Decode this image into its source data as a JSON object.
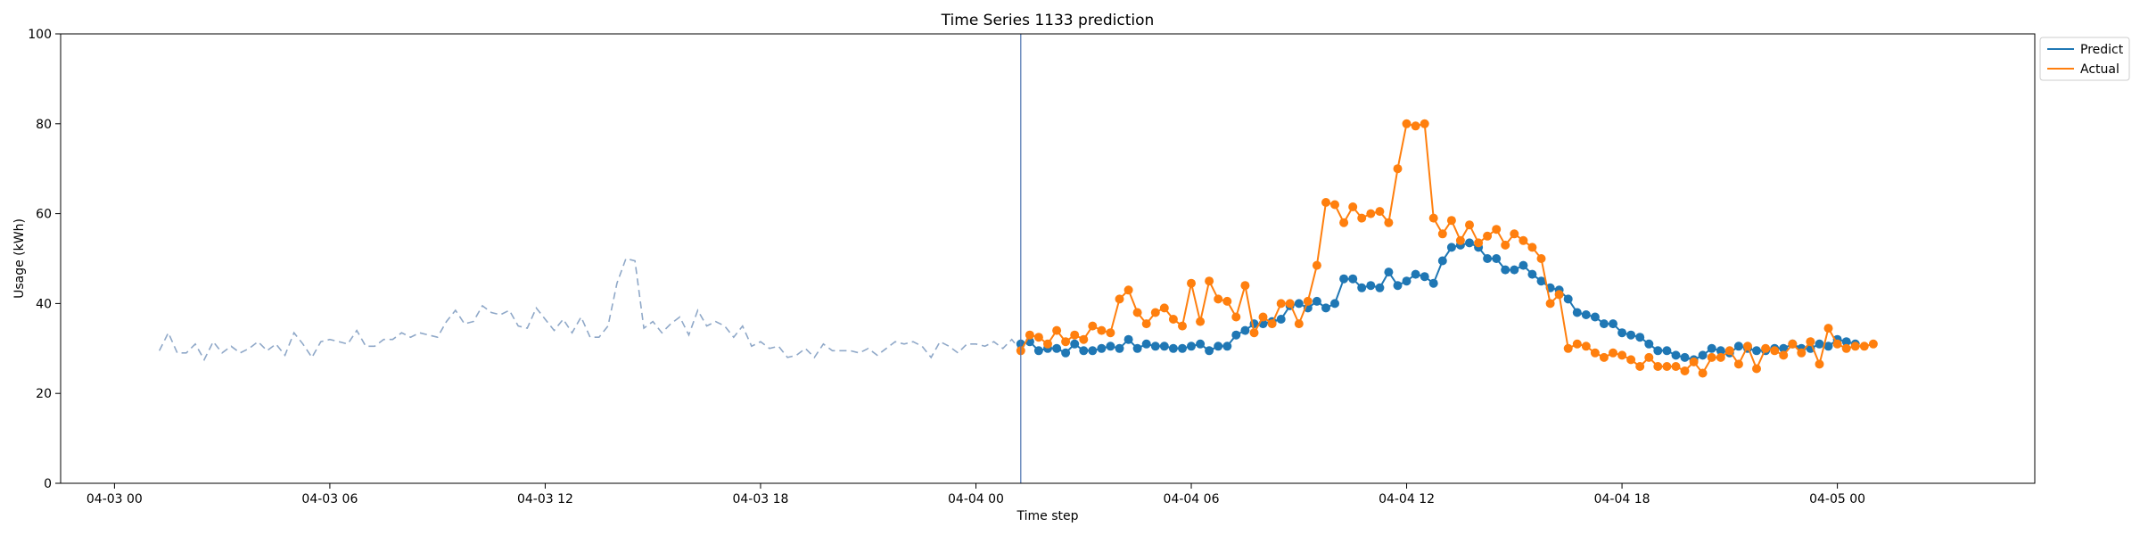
{
  "chart_data": {
    "type": "line",
    "title": "Time Series 1133 prediction",
    "xlabel": "Time step",
    "ylabel": "Usage (kWh)",
    "x_axis": {
      "type": "datetime",
      "range": [
        "2024-04-02T22:30",
        "2024-04-05T05:30"
      ],
      "ticks": [
        {
          "value": "2024-04-03T00:00",
          "label": "04-03 00"
        },
        {
          "value": "2024-04-03T06:00",
          "label": "04-03 06"
        },
        {
          "value": "2024-04-03T12:00",
          "label": "04-03 12"
        },
        {
          "value": "2024-04-03T18:00",
          "label": "04-03 18"
        },
        {
          "value": "2024-04-04T00:00",
          "label": "04-04 00"
        },
        {
          "value": "2024-04-04T06:00",
          "label": "04-04 06"
        },
        {
          "value": "2024-04-04T12:00",
          "label": "04-04 12"
        },
        {
          "value": "2024-04-04T18:00",
          "label": "04-04 18"
        },
        {
          "value": "2024-04-05T00:00",
          "label": "04-05 00"
        }
      ]
    },
    "y_axis": {
      "range": [
        0,
        100
      ],
      "ticks": [
        0,
        20,
        40,
        60,
        80,
        100
      ]
    },
    "grid": false,
    "legend": {
      "position": "top-right-outside",
      "entries": [
        "Predict",
        "Actual"
      ]
    },
    "vertical_line": {
      "x": "2024-04-04T01:15",
      "color": "#4c72b0"
    },
    "series": [
      {
        "name": "",
        "style": "dashed",
        "color": "#8fa8c8",
        "x_start": "2024-04-03T01:15",
        "x_step_minutes": 15,
        "values": [
          29.5,
          33.5,
          29,
          29,
          31,
          27.5,
          31.5,
          29,
          30.5,
          29,
          30,
          31.5,
          29.5,
          31,
          28.5,
          33.5,
          31,
          28,
          31.5,
          32,
          31.5,
          31,
          34,
          30.5,
          30.5,
          32,
          32,
          33.5,
          32.5,
          33.5,
          33,
          32.5,
          36,
          38.5,
          35.5,
          36,
          39.5,
          38,
          37.5,
          38.5,
          35,
          34.5,
          39,
          36.5,
          34,
          36.5,
          33.5,
          37,
          32.5,
          32.5,
          35,
          44.5,
          50,
          49.5,
          34.5,
          36,
          33.5,
          35.5,
          37,
          33,
          38.5,
          35,
          36,
          35,
          32.5,
          35,
          30.5,
          31.5,
          30,
          30.5,
          28,
          28.5,
          30,
          28,
          31,
          29.5,
          29.5,
          29.5,
          29,
          30,
          28.5,
          30,
          31.5,
          31,
          31.5,
          30.5,
          28,
          31.5,
          30.5,
          29,
          31,
          31,
          30.5,
          31.5,
          30,
          32,
          29.5
        ]
      },
      {
        "name": "Predict",
        "style": "solid-markers",
        "color": "#1f77b4",
        "x_start": "2024-04-04T01:15",
        "x_step_minutes": 15,
        "values": [
          31,
          31.5,
          29.5,
          30,
          30,
          29,
          31,
          29.5,
          29.5,
          30,
          30.5,
          30,
          32,
          30,
          31,
          30.5,
          30.5,
          30,
          30,
          30.5,
          31,
          29.5,
          30.5,
          30.5,
          33,
          34,
          35.5,
          35.5,
          36,
          36.5,
          39.5,
          40,
          39,
          40.5,
          39,
          40,
          45.5,
          45.5,
          43.5,
          44,
          43.5,
          47,
          44,
          45,
          46.5,
          46,
          44.5,
          49.5,
          52.5,
          53,
          53.5,
          52.5,
          50,
          50,
          47.5,
          47.5,
          48.5,
          46.5,
          45,
          43.5,
          43,
          41,
          38,
          37.5,
          37,
          35.5,
          35.5,
          33.5,
          33,
          32.5,
          31,
          29.5,
          29.5,
          28.5,
          28,
          27.5,
          28.5,
          30,
          29.5,
          29,
          30.5,
          30,
          29.5,
          29.5,
          30,
          30,
          31,
          30,
          30,
          31,
          30.5,
          32,
          31.5,
          31
        ]
      },
      {
        "name": "Actual",
        "style": "solid-markers",
        "color": "#ff7f0e",
        "x_start": "2024-04-04T01:15",
        "x_step_minutes": 15,
        "values": [
          29.5,
          33,
          32.5,
          31,
          34,
          31.5,
          33,
          32,
          35,
          34,
          33.5,
          41,
          43,
          38,
          35.5,
          38,
          39,
          36.5,
          35,
          44.5,
          36,
          45,
          41,
          40.5,
          37,
          44,
          33.5,
          37,
          35.5,
          40,
          40,
          35.5,
          40.5,
          48.5,
          62.5,
          62,
          58,
          61.5,
          59,
          60,
          60.5,
          58,
          70,
          80,
          79.5,
          80,
          59,
          55.5,
          58.5,
          54,
          57.5,
          53.5,
          55,
          56.5,
          53,
          55.5,
          54,
          52.5,
          50,
          40,
          42,
          30,
          31,
          30.5,
          29,
          28,
          29,
          28.5,
          27.5,
          26,
          28,
          26,
          26,
          26,
          25,
          27,
          24.5,
          28,
          28,
          29.5,
          26.5,
          30.5,
          25.5,
          30,
          29.5,
          28.5,
          31,
          29,
          31.5,
          26.5,
          34.5,
          31,
          30,
          30.5,
          30.5,
          31
        ]
      }
    ]
  }
}
